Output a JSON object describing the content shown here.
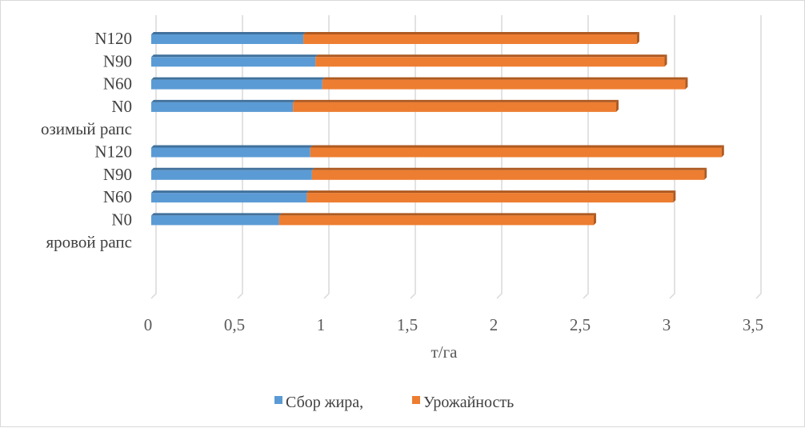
{
  "chart_data": {
    "type": "bar",
    "orientation": "horizontal",
    "stacked": true,
    "three_d": true,
    "categories": [
      "яровой рапс",
      "N0",
      "N60",
      "N90",
      "N120",
      "озимый рапс",
      "N0",
      "N60",
      "N90",
      "N120"
    ],
    "series": [
      {
        "name": "Сбор жира,",
        "color": "#5b9bd5",
        "values": [
          null,
          0.74,
          0.9,
          0.93,
          0.92,
          null,
          0.82,
          0.99,
          0.95,
          0.88
        ]
      },
      {
        "name": "Урожайность",
        "color": "#ed7d31",
        "values": [
          null,
          1.82,
          2.12,
          2.27,
          2.38,
          null,
          1.87,
          2.1,
          2.02,
          1.93
        ]
      }
    ],
    "xlabel": "т/га",
    "xlim": [
      0,
      3.5
    ],
    "xticks": [
      "0",
      "0,5",
      "1",
      "1,5",
      "2",
      "2,5",
      "3",
      "3,5"
    ],
    "grid": true,
    "legend": "bottom"
  }
}
